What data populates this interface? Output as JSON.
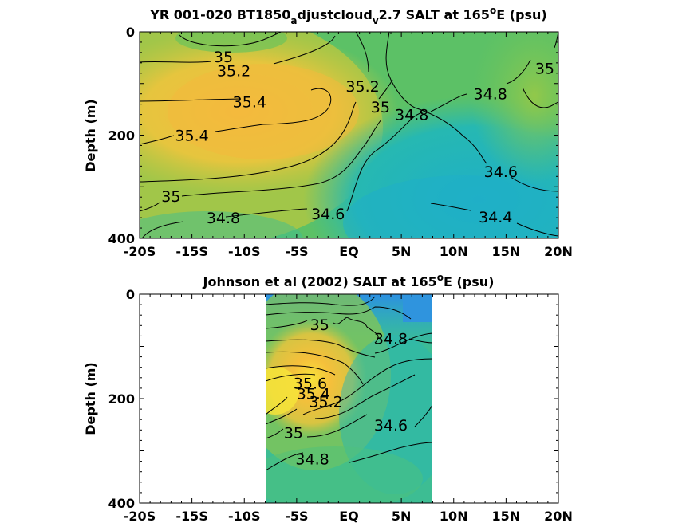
{
  "chart_data": [
    {
      "type": "heatmap",
      "panel": "model",
      "title": "YR 001-020 BT1850",
      "title_sub1": "a",
      "title_mid": "djustcloud",
      "title_sub2": "v",
      "title_tail": "2.7 SALT at 165",
      "title_sup": "o",
      "title_end": "E (psu)",
      "ylabel": "Depth (m)",
      "xlim": [
        -20,
        20
      ],
      "ylim": [
        0,
        400
      ],
      "y_reversed": true,
      "x_ticks": [
        {
          "value": -20,
          "label": "-20S"
        },
        {
          "value": -15,
          "label": "-15S"
        },
        {
          "value": -10,
          "label": "-10S"
        },
        {
          "value": -5,
          "label": "-5S"
        },
        {
          "value": 0,
          "label": "EQ"
        },
        {
          "value": 5,
          "label": "5N"
        },
        {
          "value": 10,
          "label": "10N"
        },
        {
          "value": 15,
          "label": "15N"
        },
        {
          "value": 20,
          "label": "20N"
        }
      ],
      "y_ticks": [
        {
          "value": 0,
          "label": "0"
        },
        {
          "value": 200,
          "label": "200"
        },
        {
          "value": 400,
          "label": "400"
        }
      ],
      "contour_labels": [
        {
          "text": "35",
          "lat": -12,
          "depth": 48
        },
        {
          "text": "35.2",
          "lat": -11,
          "depth": 75
        },
        {
          "text": "35.4",
          "lat": -9.5,
          "depth": 135
        },
        {
          "text": "35.4",
          "lat": -15,
          "depth": 200
        },
        {
          "text": "35.2",
          "lat": 1.3,
          "depth": 105
        },
        {
          "text": "35",
          "lat": 3,
          "depth": 145
        },
        {
          "text": "34.8",
          "lat": 6,
          "depth": 160
        },
        {
          "text": "34.8",
          "lat": 13.5,
          "depth": 120
        },
        {
          "text": "35",
          "lat": 18.7,
          "depth": 70
        },
        {
          "text": "34.6",
          "lat": 14.5,
          "depth": 270
        },
        {
          "text": "35",
          "lat": -17,
          "depth": 318
        },
        {
          "text": "34.8",
          "lat": -12,
          "depth": 360
        },
        {
          "text": "34.6",
          "lat": -2,
          "depth": 352
        },
        {
          "text": "34.4",
          "lat": 14,
          "depth": 358
        }
      ]
    },
    {
      "type": "heatmap",
      "panel": "observations",
      "title": "Johnson et al (2002) SALT at 165",
      "title_sup": "o",
      "title_end": "E (psu)",
      "ylabel": "Depth (m)",
      "xlim": [
        -20,
        20
      ],
      "ylim": [
        0,
        400
      ],
      "y_reversed": true,
      "data_lat_range": [
        -8,
        8
      ],
      "x_ticks": [
        {
          "value": -20,
          "label": "-20S"
        },
        {
          "value": -15,
          "label": "-15S"
        },
        {
          "value": -10,
          "label": "-10S"
        },
        {
          "value": -5,
          "label": "-5S"
        },
        {
          "value": 0,
          "label": "EQ"
        },
        {
          "value": 5,
          "label": "5N"
        },
        {
          "value": 10,
          "label": "10N"
        },
        {
          "value": 15,
          "label": "15N"
        },
        {
          "value": 20,
          "label": "20N"
        }
      ],
      "y_ticks": [
        {
          "value": 0,
          "label": "0"
        },
        {
          "value": 200,
          "label": "200"
        },
        {
          "value": 400,
          "label": "400"
        }
      ],
      "contour_labels": [
        {
          "text": "35",
          "lat": -2.8,
          "depth": 58
        },
        {
          "text": "34.8",
          "lat": 4,
          "depth": 85
        },
        {
          "text": "35.6",
          "lat": -3.7,
          "depth": 170
        },
        {
          "text": "35.4",
          "lat": -3.4,
          "depth": 190
        },
        {
          "text": "35.2",
          "lat": -2.2,
          "depth": 205
        },
        {
          "text": "34.6",
          "lat": 4,
          "depth": 250
        },
        {
          "text": "35",
          "lat": -5.3,
          "depth": 265
        },
        {
          "text": "34.8",
          "lat": -3.5,
          "depth": 315
        }
      ]
    }
  ],
  "colors": {
    "high": "#f2c43a",
    "mid_high": "#8cc84a",
    "mid": "#3fbf8f",
    "low": "#23b4bb",
    "lowest": "#2f8fe0"
  }
}
